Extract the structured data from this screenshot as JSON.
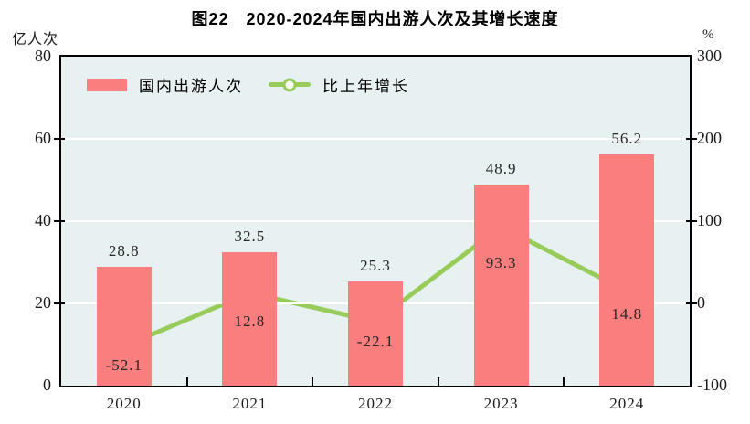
{
  "title": "图22　2020-2024年国内出游人次及其增长速度",
  "left_axis_unit": "亿人次",
  "right_axis_unit": "%",
  "legend": {
    "bars_label": "国内出游人次",
    "line_label": "比上年增长"
  },
  "colors": {
    "bar": "#FB7E7E",
    "line": "#98CC5A",
    "marker_fill": "#FDFFF2",
    "plot_bg": "#E8F1F2",
    "grid": "#FFFFFF",
    "axis": "#000000",
    "text": "#262626"
  },
  "chart_data": {
    "type": "bar",
    "subtype": "bar+line-dual-axis",
    "title": "图22 2020-2024年国内出游人次及其增长速度",
    "categories": [
      "2020",
      "2021",
      "2022",
      "2023",
      "2024"
    ],
    "series": [
      {
        "name": "国内出游人次",
        "type": "bar",
        "axis": "left",
        "unit": "亿人次",
        "values": [
          28.8,
          32.5,
          25.3,
          48.9,
          56.2
        ]
      },
      {
        "name": "比上年增长",
        "type": "line",
        "axis": "right",
        "unit": "%",
        "values": [
          -52.1,
          12.8,
          -22.1,
          93.3,
          14.8
        ]
      }
    ],
    "left_axis": {
      "label": "亿人次",
      "min": 0,
      "max": 80,
      "ticks": [
        80,
        60,
        40,
        20,
        0
      ]
    },
    "right_axis": {
      "label": "%",
      "min": -100,
      "max": 300,
      "ticks": [
        300,
        200,
        100,
        0,
        -100
      ]
    },
    "grid": "horizontal",
    "legend_position": "top-left-inside",
    "data_labels": true
  }
}
